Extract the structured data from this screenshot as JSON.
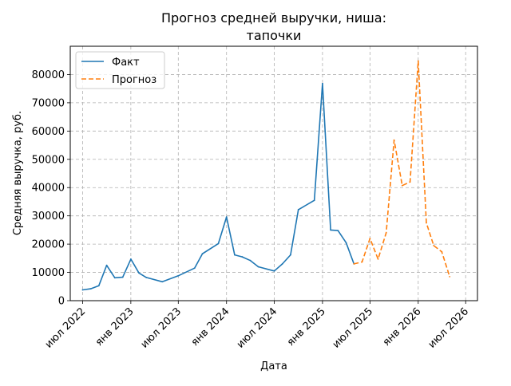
{
  "chart_data": {
    "type": "line",
    "title_line1": "Прогноз средней выручки, ниша:",
    "title_line2": "тапочки",
    "xlabel": "Дата",
    "ylabel": "Средняя выручка, руб.",
    "xlim": [
      "2022-05-15",
      "2026-08-15"
    ],
    "ylim": [
      0,
      90000
    ],
    "x_ticks": [
      {
        "date": "2022-07-01",
        "label": "июл 2022"
      },
      {
        "date": "2023-01-01",
        "label": "янв 2023"
      },
      {
        "date": "2023-07-01",
        "label": "июл 2023"
      },
      {
        "date": "2024-01-01",
        "label": "янв 2024"
      },
      {
        "date": "2024-07-01",
        "label": "июл 2024"
      },
      {
        "date": "2025-01-01",
        "label": "янв 2025"
      },
      {
        "date": "2025-07-01",
        "label": "июл 2025"
      },
      {
        "date": "2026-01-01",
        "label": "янв 2026"
      },
      {
        "date": "2026-07-01",
        "label": "июл 2026"
      }
    ],
    "y_ticks": [
      0,
      10000,
      20000,
      30000,
      40000,
      50000,
      60000,
      70000,
      80000
    ],
    "grid": true,
    "legend_position": "top-left",
    "series": [
      {
        "name": "Факт",
        "color": "#1f77b4",
        "dash": "solid",
        "points": [
          {
            "x": "2022-07-01",
            "y": 3800
          },
          {
            "x": "2022-08-01",
            "y": 4200
          },
          {
            "x": "2022-09-01",
            "y": 5300
          },
          {
            "x": "2022-10-01",
            "y": 12500
          },
          {
            "x": "2022-11-01",
            "y": 8100
          },
          {
            "x": "2022-12-01",
            "y": 8300
          },
          {
            "x": "2023-01-01",
            "y": 14700
          },
          {
            "x": "2023-02-01",
            "y": 9800
          },
          {
            "x": "2023-03-01",
            "y": 8200
          },
          {
            "x": "2023-05-01",
            "y": 6700
          },
          {
            "x": "2023-07-01",
            "y": 8800
          },
          {
            "x": "2023-09-01",
            "y": 11500
          },
          {
            "x": "2023-10-01",
            "y": 16600
          },
          {
            "x": "2023-12-01",
            "y": 20200
          },
          {
            "x": "2024-01-01",
            "y": 29600
          },
          {
            "x": "2024-02-01",
            "y": 16200
          },
          {
            "x": "2024-03-01",
            "y": 15500
          },
          {
            "x": "2024-04-01",
            "y": 14200
          },
          {
            "x": "2024-05-01",
            "y": 12000
          },
          {
            "x": "2024-07-01",
            "y": 10500
          },
          {
            "x": "2024-08-01",
            "y": 13000
          },
          {
            "x": "2024-09-01",
            "y": 16200
          },
          {
            "x": "2024-10-01",
            "y": 32200
          },
          {
            "x": "2024-12-01",
            "y": 35500
          },
          {
            "x": "2025-01-01",
            "y": 76800
          },
          {
            "x": "2025-02-01",
            "y": 25000
          },
          {
            "x": "2025-03-01",
            "y": 24800
          },
          {
            "x": "2025-04-01",
            "y": 20500
          },
          {
            "x": "2025-05-01",
            "y": 13000
          }
        ]
      },
      {
        "name": "Прогноз",
        "color": "#ff7f0e",
        "dash": "dashed",
        "points": [
          {
            "x": "2025-05-01",
            "y": 13000
          },
          {
            "x": "2025-06-01",
            "y": 13700
          },
          {
            "x": "2025-07-01",
            "y": 22000
          },
          {
            "x": "2025-08-01",
            "y": 14700
          },
          {
            "x": "2025-09-01",
            "y": 24000
          },
          {
            "x": "2025-10-01",
            "y": 56800
          },
          {
            "x": "2025-11-01",
            "y": 40700
          },
          {
            "x": "2025-12-01",
            "y": 42000
          },
          {
            "x": "2026-01-01",
            "y": 84800
          },
          {
            "x": "2026-02-01",
            "y": 27500
          },
          {
            "x": "2026-03-01",
            "y": 19500
          },
          {
            "x": "2026-04-01",
            "y": 17300
          },
          {
            "x": "2026-05-01",
            "y": 8500
          }
        ]
      }
    ]
  }
}
